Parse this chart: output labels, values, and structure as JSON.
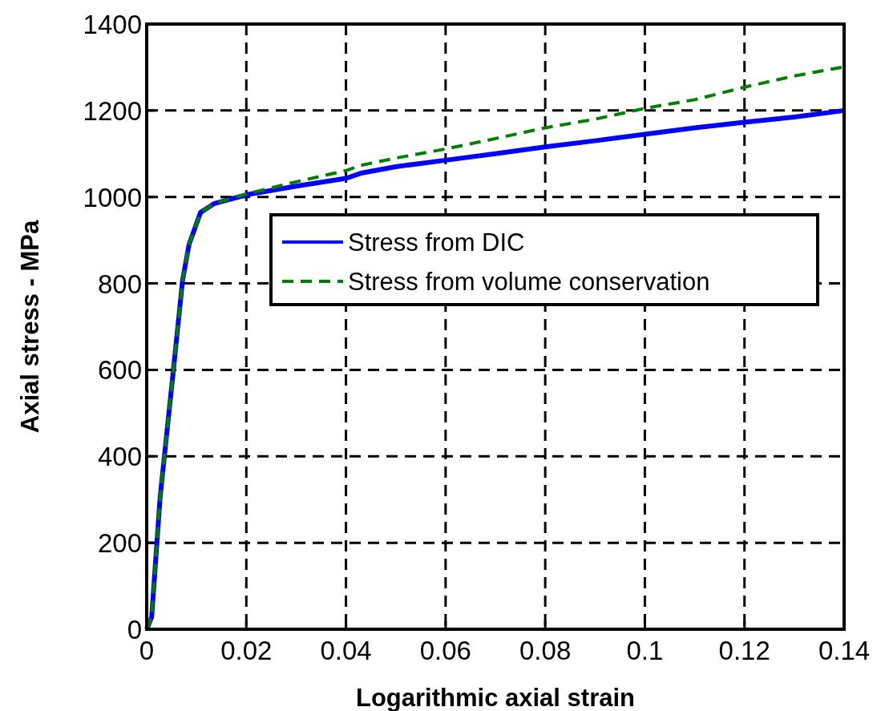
{
  "chart_data": {
    "type": "line",
    "xlabel": "Logarithmic axial strain",
    "ylabel": "Axial stress - MPa",
    "xlim": [
      0,
      0.14
    ],
    "ylim": [
      0,
      1400
    ],
    "xticks": [
      0,
      0.02,
      0.04,
      0.06,
      0.08,
      0.1,
      0.12,
      0.14
    ],
    "yticks": [
      0,
      200,
      400,
      600,
      800,
      1000,
      1200,
      1400
    ],
    "grid": true,
    "legend": "right",
    "marker": "none",
    "series": [
      {
        "name": "Stress from DIC",
        "color": "#0000ff",
        "line_style": "solid",
        "x": [
          0,
          0.001,
          0.0027,
          0.0053,
          0.0072,
          0.0085,
          0.0108,
          0.0136,
          0.0204,
          0.03,
          0.04,
          0.043,
          0.05,
          0.06,
          0.07,
          0.08,
          0.09,
          0.1,
          0.11,
          0.12,
          0.13,
          0.14
        ],
        "values": [
          0,
          28,
          306,
          593,
          807,
          890,
          964,
          985,
          1006,
          1025,
          1043,
          1055,
          1070,
          1085,
          1100,
          1116,
          1130,
          1145,
          1160,
          1173,
          1185,
          1200
        ]
      },
      {
        "name": "Stress from volume conservation",
        "color": "#008000",
        "line_style": "dashed",
        "x": [
          0,
          0.001,
          0.0027,
          0.0053,
          0.0072,
          0.0085,
          0.0108,
          0.0136,
          0.0204,
          0.03,
          0.04,
          0.043,
          0.05,
          0.06,
          0.07,
          0.08,
          0.09,
          0.1,
          0.11,
          0.12,
          0.13,
          0.14
        ],
        "values": [
          0,
          28,
          306,
          593,
          807,
          890,
          964,
          985,
          1008,
          1035,
          1061,
          1073,
          1090,
          1111,
          1135,
          1160,
          1180,
          1205,
          1225,
          1254,
          1280,
          1301
        ]
      }
    ]
  }
}
